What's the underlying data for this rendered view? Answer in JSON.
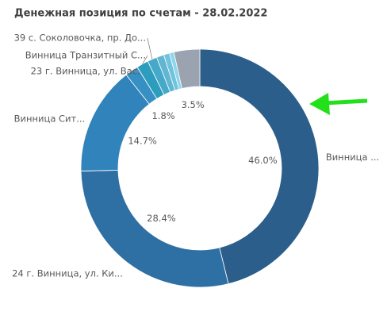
{
  "chart_data": {
    "type": "donut",
    "title": "Денежная позиция по счетам - 28.02.2022",
    "categories": [
      "Винница ...",
      "24 г. Винница, ул. Ки...",
      "Винница Сит...",
      "23 г. Винница, ул. Вас...",
      "Винница Транзитный С...",
      "39 с. Соколовочка, пр. До...",
      null,
      null,
      null,
      null
    ],
    "values": [
      46.0,
      28.4,
      14.7,
      1.8,
      1.6,
      1.3,
      1.0,
      0.8,
      0.6,
      3.5
    ],
    "value_labels": [
      "46.0%",
      "28.4%",
      "14.7%",
      "1.8%",
      null,
      null,
      null,
      null,
      null,
      "3.5%"
    ],
    "colors": [
      "#2b5e8a",
      "#2f70a4",
      "#3183bb",
      "#3790c4",
      "#2c9dbd",
      "#47a9c9",
      "#62b6d2",
      "#6fc3dc",
      "#8ed6ec",
      "#9ba3b1"
    ]
  }
}
